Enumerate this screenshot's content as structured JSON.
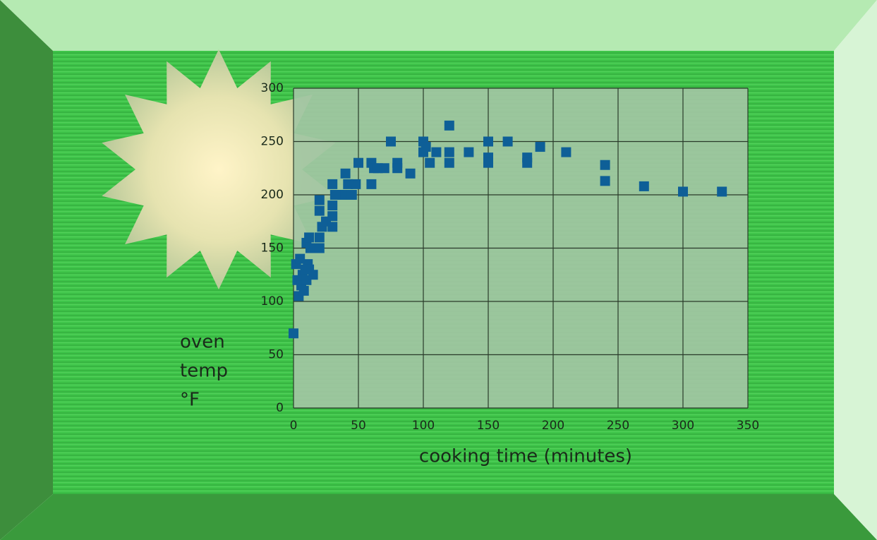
{
  "chart_data": {
    "type": "scatter",
    "ylabel": [
      "oven",
      "temp",
      "°F"
    ],
    "xlabel": "cooking time (minutes)",
    "color": "#0e5f97",
    "grid": true,
    "xlim": [
      0,
      350
    ],
    "xticks": [
      0,
      50,
      100,
      150,
      200,
      250,
      300,
      350
    ],
    "ylim": [
      0,
      300
    ],
    "yticks": [
      0,
      50,
      100,
      150,
      200,
      250,
      300
    ],
    "x": [
      0,
      2,
      3,
      4,
      5,
      6,
      7,
      8,
      9,
      10,
      10,
      11,
      12,
      12,
      13,
      15,
      20,
      20,
      20,
      20,
      22,
      25,
      30,
      30,
      30,
      30,
      32,
      35,
      40,
      40,
      42,
      45,
      48,
      50,
      60,
      60,
      62,
      65,
      70,
      75,
      80,
      80,
      90,
      100,
      100,
      102,
      105,
      110,
      120,
      120,
      120,
      135,
      150,
      150,
      150,
      165,
      180,
      180,
      190,
      210,
      240,
      240,
      270,
      300,
      330
    ],
    "values": [
      70,
      135,
      120,
      105,
      140,
      115,
      125,
      110,
      130,
      120,
      155,
      135,
      130,
      160,
      150,
      125,
      150,
      160,
      185,
      195,
      170,
      175,
      170,
      180,
      190,
      210,
      200,
      200,
      200,
      220,
      210,
      200,
      210,
      230,
      210,
      230,
      225,
      225,
      225,
      250,
      230,
      225,
      220,
      240,
      250,
      245,
      230,
      240,
      265,
      240,
      230,
      240,
      250,
      235,
      230,
      250,
      235,
      230,
      245,
      240,
      228,
      213,
      208,
      203,
      203
    ]
  }
}
